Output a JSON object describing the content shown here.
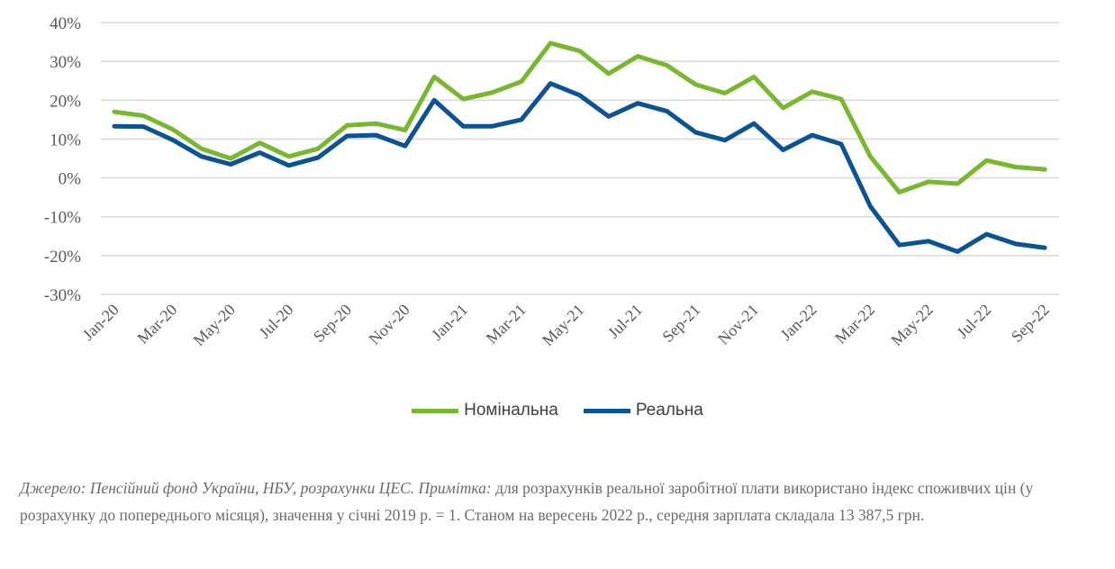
{
  "chart_data": {
    "type": "line",
    "title": "",
    "xlabel": "",
    "ylabel": "",
    "ylim": [
      -30,
      40
    ],
    "yticks": [
      "40%",
      "30%",
      "20%",
      "10%",
      "0%",
      "-10%",
      "-20%",
      "-30%"
    ],
    "ytick_values": [
      40,
      30,
      20,
      10,
      0,
      -10,
      -20,
      -30
    ],
    "grid": true,
    "legend_position": "bottom",
    "x": [
      "Jan-20",
      "Feb-20",
      "Mar-20",
      "Apr-20",
      "May-20",
      "Jun-20",
      "Jul-20",
      "Aug-20",
      "Sep-20",
      "Oct-20",
      "Nov-20",
      "Dec-20",
      "Jan-21",
      "Feb-21",
      "Mar-21",
      "Apr-21",
      "May-21",
      "Jun-21",
      "Jul-21",
      "Aug-21",
      "Sep-21",
      "Oct-21",
      "Nov-21",
      "Dec-21",
      "Jan-22",
      "Feb-22",
      "Mar-22",
      "Apr-22",
      "May-22",
      "Jun-22",
      "Jul-22",
      "Aug-22",
      "Sep-22"
    ],
    "xtick_labels": [
      "Jan-20",
      "Mar-20",
      "May-20",
      "Jul-20",
      "Sep-20",
      "Nov-20",
      "Jan-21",
      "Mar-21",
      "May-21",
      "Jul-21",
      "Sep-21",
      "Nov-21",
      "Jan-22",
      "Mar-22",
      "May-22",
      "Jul-22",
      "Sep-22"
    ],
    "series": [
      {
        "name": "Номінальна",
        "color": "#77b82f",
        "values": [
          17,
          16,
          12.5,
          7.5,
          5,
          9,
          5.5,
          7.5,
          13.5,
          14,
          12.3,
          26,
          20.3,
          22,
          24.8,
          34.7,
          32.7,
          26.8,
          31.3,
          29,
          24,
          21.8,
          26,
          18,
          22.2,
          20.3,
          5.5,
          -3.7,
          -1,
          -1.5,
          4.5,
          2.8,
          2.2
        ]
      },
      {
        "name": "Реальна",
        "color": "#0b5394",
        "values": [
          13.3,
          13.2,
          9.8,
          5.5,
          3.5,
          6.5,
          3.2,
          5.2,
          10.8,
          11,
          8.2,
          20,
          13.3,
          13.3,
          15,
          24.3,
          21.3,
          15.8,
          19.2,
          17.2,
          11.7,
          9.7,
          14,
          7.2,
          11,
          8.7,
          -7.3,
          -17.3,
          -16.3,
          -19,
          -14.5,
          -17,
          -18
        ]
      }
    ]
  },
  "note": {
    "italic": "Джерело: Пенсійний фонд України, НБУ, розрахунки ЦЕС. Примітка:",
    "text": " для розрахунків реальної заробітної плати використано індекс споживчих цін (у розрахунку до попереднього місяця), значення у січні 2019 р. = 1. Станом на вересень 2022 р., середня зарплата складала 13 387,5 грн."
  }
}
